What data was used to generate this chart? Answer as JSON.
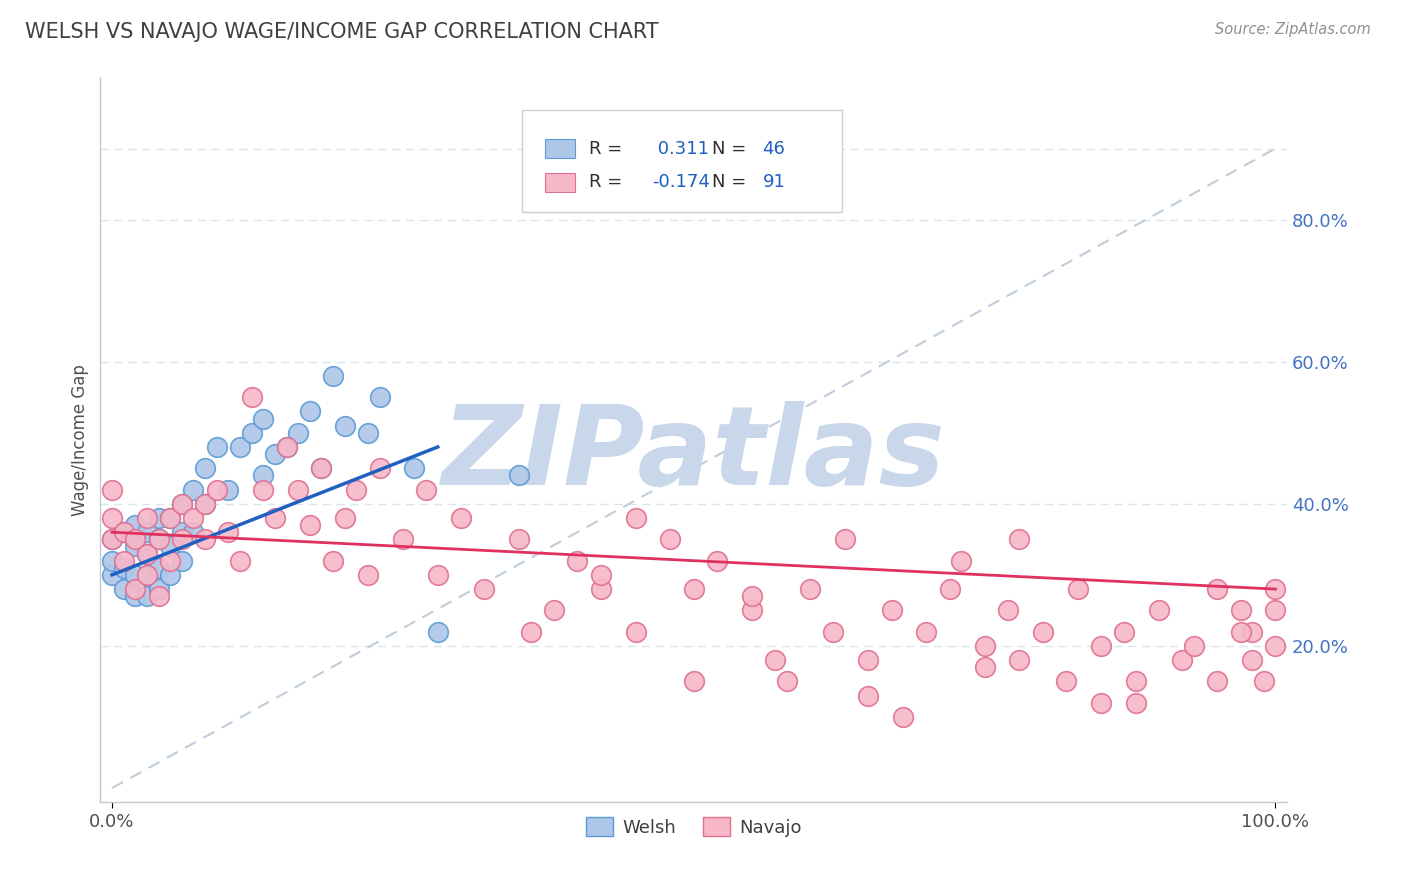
{
  "title": "WELSH VS NAVAJO WAGE/INCOME GAP CORRELATION CHART",
  "source_text": "Source: ZipAtlas.com",
  "ylabel": "Wage/Income Gap",
  "xlim": [
    -0.01,
    1.01
  ],
  "ylim": [
    -0.02,
    1.0
  ],
  "x_ticks": [
    0.0,
    1.0
  ],
  "x_tick_labels": [
    "0.0%",
    "100.0%"
  ],
  "y_ticks": [
    0.2,
    0.4,
    0.6,
    0.8
  ],
  "y_tick_labels": [
    "20.0%",
    "40.0%",
    "60.0%",
    "80.0%"
  ],
  "welsh_fill_color": "#aec6e8",
  "welsh_edge_color": "#5b9bd5",
  "navajo_fill_color": "#f7b8c8",
  "navajo_edge_color": "#e07090",
  "welsh_R": 0.311,
  "welsh_N": 46,
  "navajo_R": -0.174,
  "navajo_N": 91,
  "welsh_line_color": "#2060c0",
  "navajo_line_color": "#e03060",
  "ref_line_color": "#b8c8d8",
  "background_color": "#ffffff",
  "watermark_text": "ZIPatlas",
  "watermark_color": "#c8d8ea",
  "title_color": "#404040",
  "title_fontsize": 15,
  "legend_text_color": "#2060c0",
  "legend_label_color": "#404040",
  "ytick_color": "#4472c4",
  "grid_color": "#d8e4ee",
  "welsh_scatter_x": [
    0.0,
    0.0,
    0.0,
    0.01,
    0.01,
    0.01,
    0.02,
    0.02,
    0.02,
    0.02,
    0.03,
    0.03,
    0.03,
    0.03,
    0.04,
    0.04,
    0.04,
    0.04,
    0.05,
    0.05,
    0.05,
    0.06,
    0.06,
    0.06,
    0.07,
    0.07,
    0.08,
    0.08,
    0.09,
    0.1,
    0.11,
    0.12,
    0.13,
    0.13,
    0.14,
    0.15,
    0.16,
    0.17,
    0.18,
    0.19,
    0.2,
    0.22,
    0.23,
    0.26,
    0.28,
    0.35
  ],
  "welsh_scatter_y": [
    0.3,
    0.32,
    0.35,
    0.28,
    0.31,
    0.36,
    0.27,
    0.3,
    0.34,
    0.37,
    0.27,
    0.3,
    0.33,
    0.36,
    0.28,
    0.31,
    0.35,
    0.38,
    0.3,
    0.34,
    0.38,
    0.32,
    0.36,
    0.4,
    0.36,
    0.42,
    0.4,
    0.45,
    0.48,
    0.42,
    0.48,
    0.5,
    0.44,
    0.52,
    0.47,
    0.48,
    0.5,
    0.53,
    0.45,
    0.58,
    0.51,
    0.5,
    0.55,
    0.45,
    0.22,
    0.44
  ],
  "navajo_scatter_x": [
    0.0,
    0.0,
    0.0,
    0.01,
    0.01,
    0.02,
    0.02,
    0.03,
    0.03,
    0.03,
    0.04,
    0.04,
    0.05,
    0.05,
    0.06,
    0.06,
    0.07,
    0.08,
    0.08,
    0.09,
    0.1,
    0.11,
    0.12,
    0.13,
    0.14,
    0.15,
    0.16,
    0.17,
    0.18,
    0.19,
    0.2,
    0.21,
    0.22,
    0.23,
    0.25,
    0.27,
    0.28,
    0.3,
    0.32,
    0.36,
    0.38,
    0.4,
    0.42,
    0.45,
    0.45,
    0.48,
    0.5,
    0.52,
    0.55,
    0.57,
    0.58,
    0.6,
    0.62,
    0.63,
    0.65,
    0.67,
    0.7,
    0.72,
    0.73,
    0.75,
    0.77,
    0.78,
    0.8,
    0.82,
    0.83,
    0.85,
    0.87,
    0.88,
    0.9,
    0.92,
    0.93,
    0.95,
    0.97,
    0.98,
    0.98,
    0.99,
    1.0,
    1.0,
    1.0,
    0.5,
    0.65,
    0.75,
    0.85,
    0.35,
    0.42,
    0.55,
    0.68,
    0.78,
    0.88,
    0.95,
    0.97
  ],
  "navajo_scatter_y": [
    0.38,
    0.42,
    0.35,
    0.32,
    0.36,
    0.28,
    0.35,
    0.3,
    0.33,
    0.38,
    0.27,
    0.35,
    0.32,
    0.38,
    0.35,
    0.4,
    0.38,
    0.4,
    0.35,
    0.42,
    0.36,
    0.32,
    0.55,
    0.42,
    0.38,
    0.48,
    0.42,
    0.37,
    0.45,
    0.32,
    0.38,
    0.42,
    0.3,
    0.45,
    0.35,
    0.42,
    0.3,
    0.38,
    0.28,
    0.22,
    0.25,
    0.32,
    0.28,
    0.22,
    0.38,
    0.35,
    0.28,
    0.32,
    0.25,
    0.18,
    0.15,
    0.28,
    0.22,
    0.35,
    0.18,
    0.25,
    0.22,
    0.28,
    0.32,
    0.2,
    0.25,
    0.18,
    0.22,
    0.15,
    0.28,
    0.2,
    0.22,
    0.15,
    0.25,
    0.18,
    0.2,
    0.15,
    0.25,
    0.18,
    0.22,
    0.15,
    0.2,
    0.28,
    0.25,
    0.15,
    0.13,
    0.17,
    0.12,
    0.35,
    0.3,
    0.27,
    0.1,
    0.35,
    0.12,
    0.28,
    0.22
  ],
  "welsh_line_x": [
    0.0,
    0.28
  ],
  "welsh_line_y": [
    0.3,
    0.48
  ],
  "navajo_line_x": [
    0.0,
    1.0
  ],
  "navajo_line_y": [
    0.36,
    0.28
  ],
  "ref_line_x": [
    0.0,
    1.0
  ],
  "ref_line_y": [
    0.0,
    0.9
  ]
}
